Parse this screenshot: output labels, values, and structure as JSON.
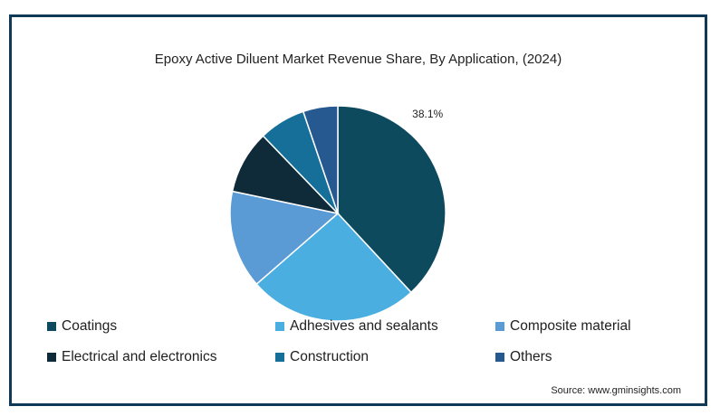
{
  "chart_data": {
    "type": "pie",
    "title": "Epoxy Active Diluent Market Revenue Share, By Application, (2024)",
    "categories": [
      "Coatings",
      "Adhesives and sealants",
      "Composite material",
      "Electrical and electronics",
      "Construction",
      "Others"
    ],
    "values": [
      38.1,
      25.5,
      14.7,
      9.5,
      7.0,
      5.2
    ],
    "colors": [
      "#0d4a5e",
      "#4aaee0",
      "#5b9bd5",
      "#0f2a38",
      "#156f99",
      "#25598f"
    ],
    "data_labels": [
      "38.1%",
      "",
      "",
      "",
      "",
      ""
    ],
    "legend_position": "bottom"
  },
  "source": "Source: www.gminsights.com"
}
